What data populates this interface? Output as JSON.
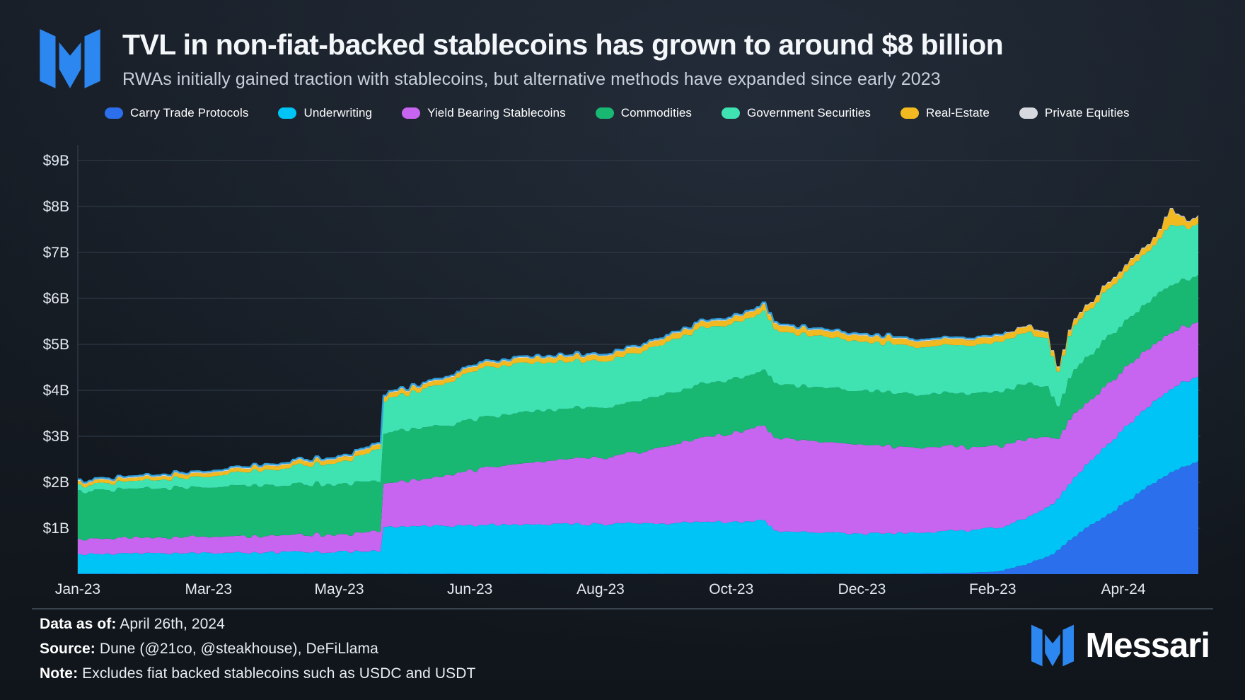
{
  "header": {
    "title": "TVL in non-fiat-backed stablecoins has grown to around $8 billion",
    "subtitle": "RWAs initially gained traction with stablecoins, but alternative methods have expanded since early 2023"
  },
  "legend": {
    "items": [
      {
        "label": "Carry Trade Protocols",
        "color": "#2b6fed"
      },
      {
        "label": "Underwriting",
        "color": "#00c4f5"
      },
      {
        "label": "Yield Bearing Stablecoins",
        "color": "#c865f0"
      },
      {
        "label": "Commodities",
        "color": "#18b873"
      },
      {
        "label": "Government Securities",
        "color": "#3fe2b1"
      },
      {
        "label": "Real-Estate",
        "color": "#f2ba20"
      },
      {
        "label": "Private Equities",
        "color": "#d6d9de"
      }
    ]
  },
  "chart_data": {
    "type": "area",
    "stacked": true,
    "title": "TVL in non-fiat-backed stablecoins ($B)",
    "unit": "USD billions",
    "ylim": [
      0,
      9
    ],
    "grid": true,
    "legend_position": "top",
    "y_ticks": [
      "$9B",
      "$8B",
      "$7B",
      "$6B",
      "$5B",
      "$4B",
      "$3B",
      "$2B",
      "$1B"
    ],
    "y_tick_values": [
      9,
      8,
      7,
      6,
      5,
      4,
      3,
      2,
      1
    ],
    "x_ticks": [
      "Jan-23",
      "Mar-23",
      "May-23",
      "Jun-23",
      "Aug-23",
      "Oct-23",
      "Dec-23",
      "Feb-23",
      "Apr-24"
    ],
    "fractions": [
      0,
      0.03,
      0.06,
      0.09,
      0.117,
      0.15,
      0.18,
      0.21,
      0.234,
      0.255,
      0.268,
      0.272,
      0.3,
      0.33,
      0.351,
      0.38,
      0.41,
      0.44,
      0.468,
      0.5,
      0.53,
      0.56,
      0.585,
      0.61,
      0.618,
      0.624,
      0.64,
      0.67,
      0.702,
      0.73,
      0.76,
      0.79,
      0.819,
      0.845,
      0.862,
      0.873,
      0.884,
      0.905,
      0.936,
      0.955,
      0.965,
      0.972,
      0.985,
      1.0
    ],
    "series": [
      {
        "name": "Carry Trade Protocols",
        "color": "#2b6fed",
        "values": [
          0.01,
          0.01,
          0.01,
          0.01,
          0.01,
          0.01,
          0.01,
          0.01,
          0.01,
          0.01,
          0.01,
          0.01,
          0.01,
          0.01,
          0.01,
          0.01,
          0.01,
          0.01,
          0.01,
          0.01,
          0.01,
          0.01,
          0.01,
          0.01,
          0.01,
          0.01,
          0.01,
          0.01,
          0.01,
          0.01,
          0.02,
          0.03,
          0.06,
          0.22,
          0.38,
          0.52,
          0.78,
          1.12,
          1.62,
          1.95,
          2.1,
          2.2,
          2.35,
          2.45
        ]
      },
      {
        "name": "Underwriting",
        "color": "#00c4f5",
        "values": [
          0.42,
          0.43,
          0.43,
          0.44,
          0.45,
          0.46,
          0.47,
          0.47,
          0.48,
          0.49,
          0.5,
          1.0,
          1.02,
          1.04,
          1.05,
          1.07,
          1.08,
          1.08,
          1.08,
          1.09,
          1.1,
          1.12,
          1.13,
          1.15,
          0.95,
          0.93,
          0.9,
          0.88,
          0.86,
          0.88,
          0.9,
          0.92,
          0.95,
          1.0,
          1.05,
          1.1,
          1.25,
          1.45,
          1.65,
          1.75,
          1.8,
          1.82,
          1.85,
          1.85
        ]
      },
      {
        "name": "Yield Bearing Stablecoins",
        "color": "#c865f0",
        "values": [
          0.33,
          0.33,
          0.34,
          0.34,
          0.35,
          0.36,
          0.37,
          0.38,
          0.38,
          0.4,
          0.42,
          0.95,
          1.0,
          1.1,
          1.2,
          1.3,
          1.38,
          1.42,
          1.45,
          1.55,
          1.7,
          1.85,
          1.95,
          2.05,
          2.05,
          2.03,
          2.0,
          1.97,
          1.92,
          1.88,
          1.85,
          1.82,
          1.78,
          1.7,
          1.55,
          1.3,
          1.38,
          1.32,
          1.28,
          1.25,
          1.23,
          1.22,
          1.2,
          1.2
        ]
      },
      {
        "name": "Commodities",
        "color": "#18b873",
        "values": [
          1.05,
          1.06,
          1.07,
          1.07,
          1.08,
          1.09,
          1.1,
          1.1,
          1.1,
          1.1,
          1.1,
          1.1,
          1.1,
          1.1,
          1.1,
          1.1,
          1.1,
          1.1,
          1.1,
          1.12,
          1.15,
          1.17,
          1.18,
          1.2,
          1.2,
          1.19,
          1.18,
          1.18,
          1.18,
          1.16,
          1.15,
          1.16,
          1.18,
          1.2,
          1.1,
          0.7,
          0.95,
          1.0,
          1.02,
          1.03,
          1.04,
          1.02,
          1.0,
          1.0
        ]
      },
      {
        "name": "Government Securities",
        "color": "#3fe2b1",
        "values": [
          0.13,
          0.15,
          0.18,
          0.21,
          0.25,
          0.3,
          0.36,
          0.42,
          0.48,
          0.6,
          0.7,
          0.72,
          0.8,
          0.95,
          1.05,
          1.08,
          1.05,
          1.02,
          1.0,
          1.05,
          1.15,
          1.2,
          1.22,
          1.28,
          1.15,
          1.13,
          1.12,
          1.1,
          1.06,
          1.05,
          1.03,
          1.05,
          1.08,
          1.12,
          1.05,
          0.72,
          0.95,
          1.0,
          1.08,
          1.1,
          1.2,
          1.35,
          1.1,
          1.1
        ]
      },
      {
        "name": "Real-Estate",
        "color": "#f2ba20",
        "values": [
          0.07,
          0.07,
          0.07,
          0.08,
          0.08,
          0.08,
          0.09,
          0.09,
          0.09,
          0.1,
          0.1,
          0.1,
          0.1,
          0.1,
          0.1,
          0.1,
          0.11,
          0.11,
          0.12,
          0.12,
          0.12,
          0.12,
          0.12,
          0.13,
          0.13,
          0.13,
          0.13,
          0.13,
          0.13,
          0.13,
          0.13,
          0.13,
          0.13,
          0.13,
          0.12,
          0.1,
          0.12,
          0.13,
          0.14,
          0.14,
          0.2,
          0.35,
          0.15,
          0.15
        ]
      },
      {
        "name": "Private Equities",
        "color": "#d6d9de",
        "values": [
          0.02,
          0.02,
          0.02,
          0.02,
          0.02,
          0.02,
          0.02,
          0.02,
          0.02,
          0.02,
          0.02,
          0.02,
          0.02,
          0.02,
          0.02,
          0.02,
          0.02,
          0.02,
          0.02,
          0.02,
          0.02,
          0.02,
          0.02,
          0.02,
          0.02,
          0.02,
          0.02,
          0.02,
          0.02,
          0.02,
          0.02,
          0.02,
          0.02,
          0.02,
          0.02,
          0.02,
          0.02,
          0.02,
          0.02,
          0.02,
          0.02,
          0.02,
          0.02,
          0.02
        ]
      }
    ]
  },
  "footer": {
    "data_as_of_label": "Data as of:",
    "data_as_of_value": "April 26th, 2024",
    "source_label": "Source:",
    "source_value": "Dune (@21co, @steakhouse), DeFiLlama",
    "note_label": "Note:",
    "note_value": "Excludes fiat backed stablecoins such as USDC and USDT"
  },
  "branding": {
    "wordmark": "Messari",
    "logo_color": "#2d87f0"
  }
}
